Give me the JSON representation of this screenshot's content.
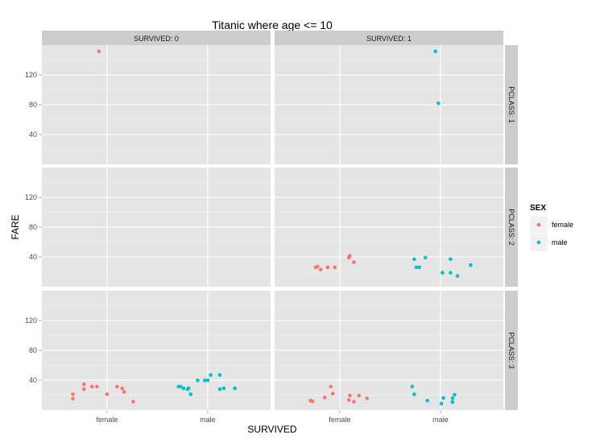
{
  "chart_data": {
    "type": "scatter",
    "title": "Titanic where age <= 10",
    "xlabel": "SURVIVED",
    "ylabel": "FARE",
    "x_categories": [
      "female",
      "male"
    ],
    "y_ticks": [
      40,
      80,
      120
    ],
    "ylim": [
      0,
      160
    ],
    "facet_cols": [
      {
        "key": "0",
        "label": "SURVIVED: 0"
      },
      {
        "key": "1",
        "label": "SURVIVED: 1"
      }
    ],
    "facet_rows": [
      {
        "key": "1",
        "label": "PCLASS: 1"
      },
      {
        "key": "2",
        "label": "PCLASS: 2"
      },
      {
        "key": "3",
        "label": "PCLASS: 3"
      }
    ],
    "legend": {
      "title": "SEX",
      "entries": [
        {
          "label": "female",
          "color": "#F8766D"
        },
        {
          "label": "male",
          "color": "#00BFC4"
        }
      ]
    },
    "panels": [
      {
        "pclass": 1,
        "survived": 0,
        "points": [
          {
            "sex": "female",
            "x": -0.08,
            "y": 151.6
          }
        ]
      },
      {
        "pclass": 1,
        "survived": 1,
        "points": [
          {
            "sex": "male",
            "x": -0.05,
            "y": 151.6
          },
          {
            "sex": "male",
            "x": -0.02,
            "y": 81.9
          }
        ]
      },
      {
        "pclass": 2,
        "survived": 0,
        "points": []
      },
      {
        "pclass": 2,
        "survived": 1,
        "points": [
          {
            "sex": "female",
            "x": -0.24,
            "y": 26.0
          },
          {
            "sex": "female",
            "x": -0.22,
            "y": 27.0
          },
          {
            "sex": "female",
            "x": -0.19,
            "y": 23.0
          },
          {
            "sex": "female",
            "x": -0.12,
            "y": 26.0
          },
          {
            "sex": "female",
            "x": -0.05,
            "y": 26.0
          },
          {
            "sex": "female",
            "x": 0.09,
            "y": 39.0
          },
          {
            "sex": "female",
            "x": 0.1,
            "y": 41.6
          },
          {
            "sex": "female",
            "x": 0.14,
            "y": 33.0
          },
          {
            "sex": "male",
            "x": -0.26,
            "y": 37.0
          },
          {
            "sex": "male",
            "x": -0.24,
            "y": 26.0
          },
          {
            "sex": "male",
            "x": -0.21,
            "y": 26.0
          },
          {
            "sex": "male",
            "x": -0.15,
            "y": 39.0
          },
          {
            "sex": "male",
            "x": 0.02,
            "y": 18.8
          },
          {
            "sex": "male",
            "x": 0.1,
            "y": 37.0
          },
          {
            "sex": "male",
            "x": 0.1,
            "y": 18.8
          },
          {
            "sex": "male",
            "x": 0.17,
            "y": 14.5
          },
          {
            "sex": "male",
            "x": 0.3,
            "y": 29.0
          }
        ]
      },
      {
        "pclass": 3,
        "survived": 0,
        "points": [
          {
            "sex": "female",
            "x": -0.34,
            "y": 21.1
          },
          {
            "sex": "female",
            "x": -0.34,
            "y": 15.2
          },
          {
            "sex": "female",
            "x": -0.23,
            "y": 34.4
          },
          {
            "sex": "female",
            "x": -0.23,
            "y": 27.9
          },
          {
            "sex": "female",
            "x": -0.15,
            "y": 31.3
          },
          {
            "sex": "female",
            "x": -0.1,
            "y": 31.3
          },
          {
            "sex": "female",
            "x": 0.0,
            "y": 21.1
          },
          {
            "sex": "female",
            "x": 0.1,
            "y": 31.3
          },
          {
            "sex": "female",
            "x": 0.15,
            "y": 29.1
          },
          {
            "sex": "female",
            "x": 0.17,
            "y": 24.2
          },
          {
            "sex": "female",
            "x": 0.26,
            "y": 11.1
          },
          {
            "sex": "male",
            "x": -0.29,
            "y": 31.3
          },
          {
            "sex": "male",
            "x": -0.27,
            "y": 31.3
          },
          {
            "sex": "male",
            "x": -0.24,
            "y": 29.1
          },
          {
            "sex": "male",
            "x": -0.2,
            "y": 27.9
          },
          {
            "sex": "male",
            "x": -0.19,
            "y": 29.1
          },
          {
            "sex": "male",
            "x": -0.17,
            "y": 21.1
          },
          {
            "sex": "male",
            "x": -0.1,
            "y": 39.7
          },
          {
            "sex": "male",
            "x": -0.03,
            "y": 39.7
          },
          {
            "sex": "male",
            "x": 0.0,
            "y": 39.7
          },
          {
            "sex": "male",
            "x": 0.03,
            "y": 46.9
          },
          {
            "sex": "male",
            "x": 0.12,
            "y": 46.9
          },
          {
            "sex": "male",
            "x": 0.12,
            "y": 27.9
          },
          {
            "sex": "male",
            "x": 0.16,
            "y": 29.1
          },
          {
            "sex": "male",
            "x": 0.27,
            "y": 29.1
          }
        ]
      },
      {
        "pclass": 3,
        "survived": 1,
        "points": [
          {
            "sex": "female",
            "x": -0.29,
            "y": 12.5
          },
          {
            "sex": "female",
            "x": -0.27,
            "y": 11.5
          },
          {
            "sex": "female",
            "x": -0.15,
            "y": 16.7
          },
          {
            "sex": "female",
            "x": -0.09,
            "y": 31.4
          },
          {
            "sex": "female",
            "x": -0.07,
            "y": 22.0
          },
          {
            "sex": "female",
            "x": 0.09,
            "y": 13.4
          },
          {
            "sex": "female",
            "x": 0.1,
            "y": 19.3
          },
          {
            "sex": "female",
            "x": 0.14,
            "y": 11.1
          },
          {
            "sex": "female",
            "x": 0.19,
            "y": 19.3
          },
          {
            "sex": "female",
            "x": 0.27,
            "y": 15.7
          },
          {
            "sex": "male",
            "x": -0.28,
            "y": 31.4
          },
          {
            "sex": "male",
            "x": -0.26,
            "y": 21.0
          },
          {
            "sex": "male",
            "x": -0.13,
            "y": 12.5
          },
          {
            "sex": "male",
            "x": 0.01,
            "y": 8.5
          },
          {
            "sex": "male",
            "x": 0.03,
            "y": 16.1
          },
          {
            "sex": "male",
            "x": 0.12,
            "y": 15.7
          },
          {
            "sex": "male",
            "x": 0.12,
            "y": 10.5
          },
          {
            "sex": "male",
            "x": 0.14,
            "y": 20.3
          }
        ]
      }
    ]
  }
}
